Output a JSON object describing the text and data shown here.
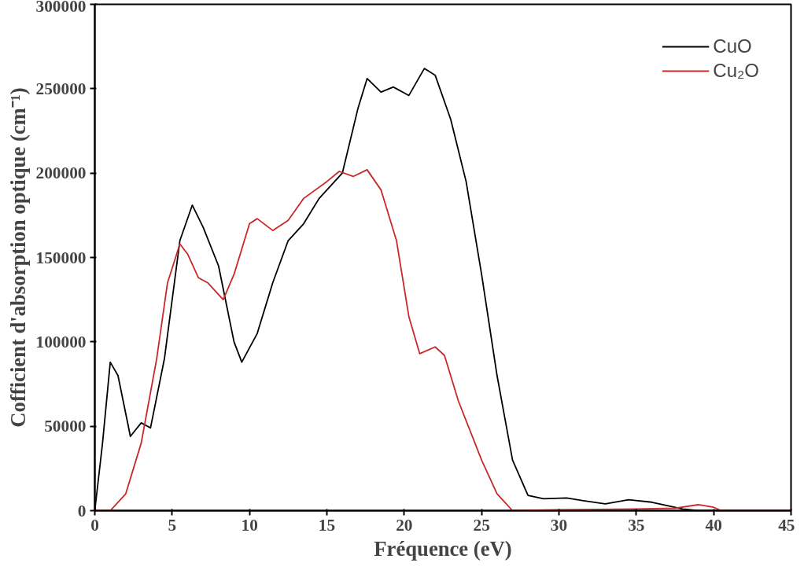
{
  "chart_data": {
    "type": "line",
    "xlabel": "Fréquence (eV)",
    "ylabel": "Cofficient d'absorption optique (cm⁻¹)",
    "xlim": [
      0,
      45
    ],
    "ylim": [
      0,
      300000
    ],
    "xticks": [
      0,
      5,
      10,
      15,
      20,
      25,
      30,
      35,
      40,
      45
    ],
    "yticks": [
      0,
      50000,
      100000,
      150000,
      200000,
      250000,
      300000
    ],
    "grid": false,
    "legend": "top right",
    "line_style": "solid",
    "marker": "none",
    "series": [
      {
        "name": "CuO",
        "color": "#000000",
        "x": [
          0,
          0.5,
          1,
          1.5,
          2.3,
          3,
          3.6,
          4.5,
          5.5,
          6.3,
          7,
          8,
          9,
          9.5,
          10.5,
          11.5,
          12.5,
          13.5,
          14.5,
          16,
          17,
          17.6,
          18.5,
          19.3,
          20.3,
          21.3,
          22,
          23,
          24,
          25,
          26,
          27,
          28,
          29,
          30.5,
          31.5,
          33,
          34.5,
          36,
          37,
          38,
          39,
          45
        ],
        "values": [
          0,
          40000,
          88000,
          80000,
          44000,
          52000,
          49000,
          90000,
          160000,
          181000,
          168000,
          145000,
          100000,
          88000,
          105000,
          135000,
          160000,
          170000,
          185000,
          200000,
          238000,
          256000,
          248000,
          251000,
          246000,
          262000,
          258000,
          232000,
          195000,
          140000,
          80000,
          30000,
          9000,
          7000,
          7500,
          6000,
          4000,
          6500,
          5000,
          3000,
          1000,
          0,
          0
        ]
      },
      {
        "name": "Cu₂O",
        "color": "#c8282a",
        "x": [
          0,
          1,
          2,
          3,
          4,
          4.7,
          5.5,
          6,
          6.7,
          7.3,
          8.3,
          9,
          10,
          10.5,
          11.5,
          12.5,
          13.5,
          15,
          15.8,
          16.7,
          17.6,
          18.5,
          19.5,
          20.3,
          21,
          22,
          22.6,
          23.5,
          25,
          26,
          27,
          30,
          35,
          37.5,
          39,
          40,
          40.5,
          45
        ],
        "values": [
          0,
          0,
          10000,
          40000,
          90000,
          135000,
          158000,
          152000,
          138000,
          135000,
          125000,
          140000,
          170000,
          173000,
          166000,
          172000,
          185000,
          195000,
          201000,
          198000,
          202000,
          190000,
          160000,
          115000,
          93000,
          97000,
          92000,
          65000,
          30000,
          10000,
          0,
          500,
          1000,
          1500,
          3500,
          2000,
          0,
          0
        ]
      }
    ]
  }
}
